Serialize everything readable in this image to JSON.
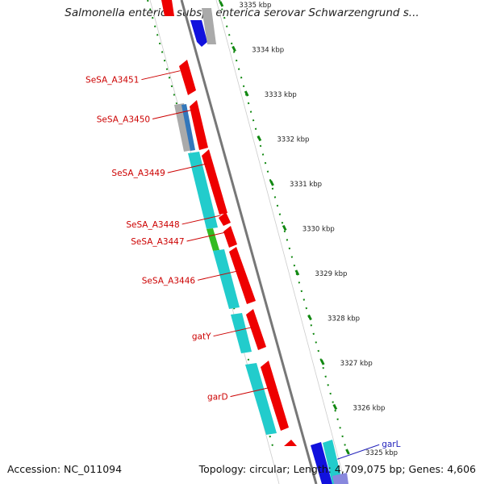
{
  "title": "Salmonella enterica subsp. enterica serovar Schwarzengrund s...",
  "footer": {
    "accession": "Accession: NC_011094",
    "summary": "Topology: circular; Length: 4,709,075 bp; Genes: 4,606"
  },
  "colors": {
    "red": "#ee0000",
    "cyan": "#22cccc",
    "blue": "#1111dd",
    "gray": "#aaaaaa",
    "green": "#33bb22",
    "dots": "#118811",
    "label": "#cc0000",
    "label_blue": "#2222bb"
  },
  "ruler": [
    {
      "label": "3335 kbp",
      "pos": 3335
    },
    {
      "label": "3334 kbp",
      "pos": 3334
    },
    {
      "label": "3333 kbp",
      "pos": 3333
    },
    {
      "label": "3332 kbp",
      "pos": 3332
    },
    {
      "label": "3331 kbp",
      "pos": 3331
    },
    {
      "label": "3330 kbp",
      "pos": 3330
    },
    {
      "label": "3329 kbp",
      "pos": 3329
    },
    {
      "label": "3328 kbp",
      "pos": 3328
    },
    {
      "label": "3327 kbp",
      "pos": 3327
    },
    {
      "label": "3326 kbp",
      "pos": 3326
    },
    {
      "label": "3325 kbp",
      "pos": 3325
    }
  ],
  "gene_labels": [
    {
      "name": "SeSA_A3451",
      "pos": 3333.33,
      "lane": "inner",
      "color": "red"
    },
    {
      "name": "SeSA_A3450",
      "pos": 3332.45,
      "lane": "inner",
      "color": "red"
    },
    {
      "name": "SeSA_A3449",
      "pos": 3331.25,
      "lane": "inner",
      "color": "red"
    },
    {
      "name": "SeSA_A3448",
      "pos": 3330.1,
      "lane": "inner",
      "color": "red"
    },
    {
      "name": "SeSA_A3447",
      "pos": 3329.72,
      "lane": "inner",
      "color": "red"
    },
    {
      "name": "SeSA_A3446",
      "pos": 3328.85,
      "lane": "inner",
      "color": "red"
    },
    {
      "name": "gatY",
      "pos": 3327.6,
      "lane": "inner",
      "color": "red"
    },
    {
      "name": "garD",
      "pos": 3326.25,
      "lane": "inner",
      "color": "red"
    },
    {
      "name": "garL",
      "pos": 3325.05,
      "lane": "outer",
      "color": "blue"
    }
  ]
}
